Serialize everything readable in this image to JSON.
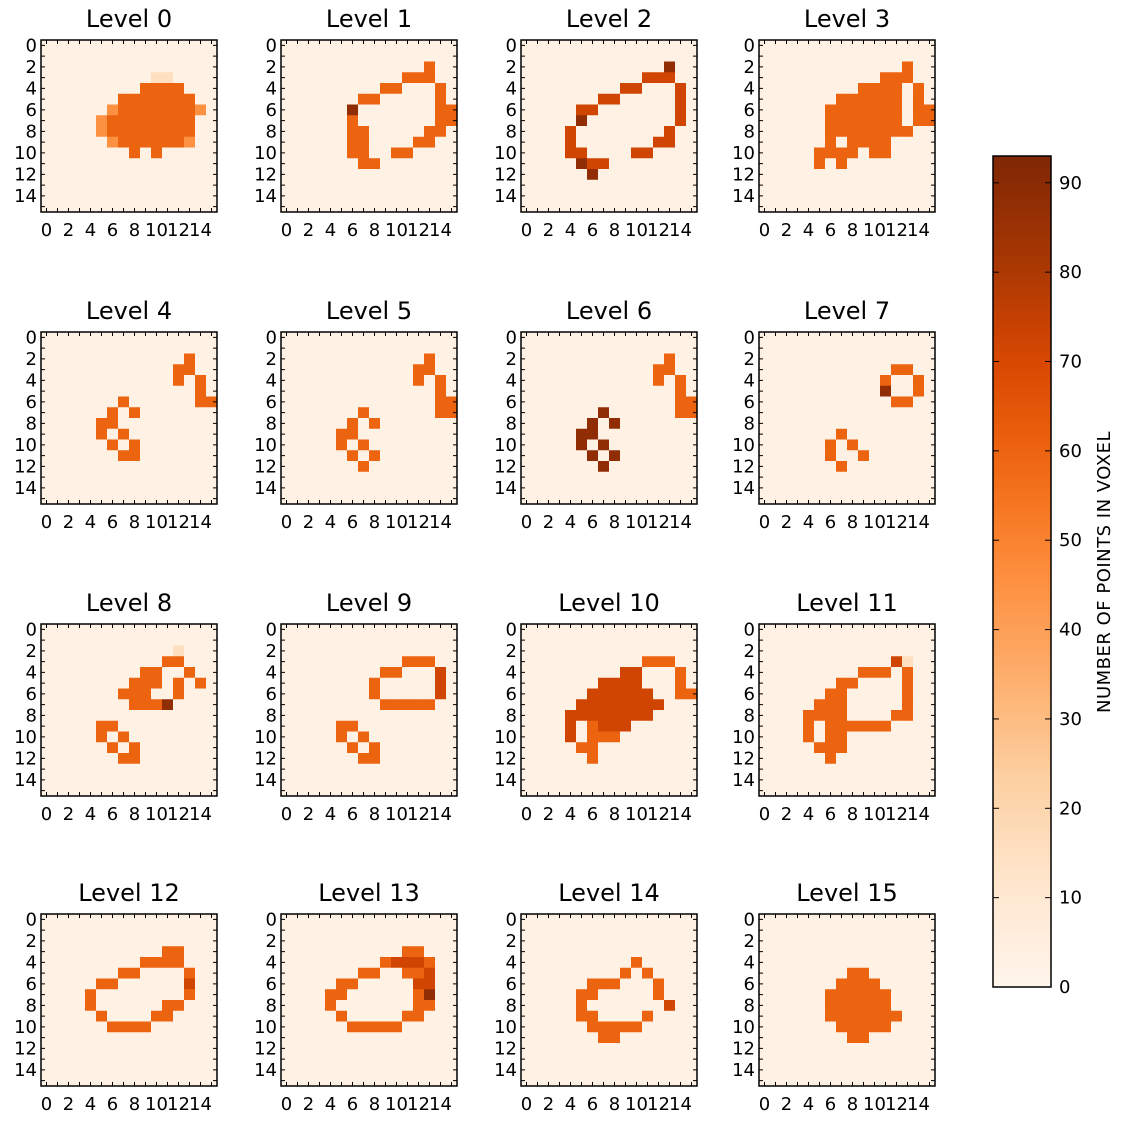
{
  "chart_data": {
    "type": "heatmap",
    "panel_titles": [
      "Level 0",
      "Level 1",
      "Level 2",
      "Level 3",
      "Level 4",
      "Level 5",
      "Level 6",
      "Level 7",
      "Level 8",
      "Level 9",
      "Level 10",
      "Level 11",
      "Level 12",
      "Level 13",
      "Level 14",
      "Level 15"
    ],
    "grid_size": 16,
    "x_tick_labels": [
      "0",
      "2",
      "4",
      "6",
      "8",
      "10",
      "12",
      "14"
    ],
    "y_tick_labels": [
      "0",
      "2",
      "4",
      "6",
      "8",
      "10",
      "12",
      "14"
    ],
    "colormap": "Oranges",
    "vmin": 0,
    "vmax": 93,
    "colorbar": {
      "label": "NUMBER OF POINTS IN VOXEL",
      "ticks": [
        "0",
        "10",
        "20",
        "30",
        "40",
        "50",
        "60",
        "70",
        "80",
        "90"
      ],
      "tick_values": [
        0,
        10,
        20,
        30,
        40,
        50,
        60,
        70,
        80,
        90
      ]
    },
    "panels": [
      {
        "rows": [
          "0000000000000000",
          "0000000000000000",
          "0000000000000000",
          "0000000000110000",
          "0000000006666000",
          "0000000666666600",
          "0000005666666650",
          "0000056666666600",
          "0000056666666600",
          "0000005666666500",
          "0000000060600000",
          "0000000000000000",
          "0000000000000000",
          "0000000000000000",
          "0000000000000000",
          "0000000000000000"
        ]
      },
      {
        "rows": [
          "0000000000000000",
          "0000000000000000",
          "0000000000000600",
          "0000000000066600",
          "0000000006600060",
          "0000000660000060",
          "0000008000000066",
          "0000006000000066",
          "0000006600000660",
          "0000006600006600",
          "0000006600660000",
          "0000000660000000",
          "0000000000000000",
          "0000000000000000",
          "0000000000000000",
          "0000000000000000"
        ]
      },
      {
        "rows": [
          "0000000000000000",
          "0000000000000000",
          "0000000000000800",
          "0000000000077700",
          "0000000007700070",
          "0000000770000070",
          "0000077000000070",
          "0000080000000070",
          "0000700000000700",
          "0000700000007700",
          "0000770000770000",
          "0000087700000000",
          "0000008000000000",
          "0000000000000000",
          "0000000000000000",
          "0000000000000000"
        ]
      },
      {
        "rows": [
          "0000000000000000",
          "0000000000000000",
          "0000000000000600",
          "0000000000066600",
          "0000000006666060",
          "0000000666666060",
          "0000006666666066",
          "0000006666666066",
          "0000006666666600",
          "0000006066660000",
          "0000066660660000",
          "0000060600000000",
          "0000000000000000",
          "0000000000000000",
          "0000000000000000",
          "0000000000000000"
        ]
      },
      {
        "rows": [
          "0000000000000000",
          "0000000000000000",
          "0000000000000600",
          "0000000000006600",
          "0000000000006060",
          "0000000000000060",
          "0000000600000066",
          "0000006060000000",
          "0000066000000000",
          "0000060600000000",
          "0000006060000000",
          "0000000660000000",
          "0000000000000000",
          "0000000000000000",
          "0000000000000000",
          "0000000000000000"
        ]
      },
      {
        "rows": [
          "0000000000000000",
          "0000000000000000",
          "0000000000000600",
          "0000000000006600",
          "0000000000006060",
          "0000000000000060",
          "0000000000000066",
          "0000000600000066",
          "0000006060000000",
          "0000066000000000",
          "0000060600000000",
          "0000006060000000",
          "0000000600000000",
          "0000000000000000",
          "0000000000000000",
          "0000000000000000"
        ]
      },
      {
        "rows": [
          "0000000000000000",
          "0000000000000000",
          "0000000000000600",
          "0000000000006600",
          "0000000000006060",
          "0000000000000060",
          "0000000000000066",
          "0000000800000066",
          "0000008080000000",
          "0000088000000000",
          "0000080800000000",
          "0000008080000000",
          "0000000800000000",
          "0000000000000000",
          "0000000000000000",
          "0000000000000000"
        ]
      },
      {
        "rows": [
          "0000000000000000",
          "0000000000000000",
          "0000000000000000",
          "0000000000006600",
          "0000000000060060",
          "0000000000080060",
          "0000000000006600",
          "0000000000000000",
          "0000000000000000",
          "0000000600000000",
          "0000006060000000",
          "0000006006000000",
          "0000000600000000",
          "0000000000000000",
          "0000000000000000",
          "0000000000000000"
        ]
      },
      {
        "rows": [
          "0000000000000000",
          "0000000000000000",
          "0000000000001000",
          "0000000000066000",
          "0000000006600600",
          "0000000066606060",
          "0000000666006000",
          "0000000066680000",
          "0000000000000000",
          "0000066000000000",
          "0000060600000000",
          "0000006060000000",
          "0000000660000000",
          "0000000000000000",
          "0000000000000000",
          "0000000000000000"
        ]
      },
      {
        "rows": [
          "0000000000000000",
          "0000000000000000",
          "0000000000000000",
          "0000000000066600",
          "0000000006600070",
          "0000000060000070",
          "0000000060000070",
          "0000000006666600",
          "0000000000000000",
          "0000066000000000",
          "0000060600000000",
          "0000006060000000",
          "0000000660000000",
          "0000000000000000",
          "0000000000000000",
          "0000000000000000"
        ]
      },
      {
        "rows": [
          "0000000000000000",
          "0000000000000000",
          "0000000000000000",
          "0000000000066600",
          "0000000007700060",
          "0000000777700060",
          "0000007777770066",
          "0000077777777000",
          "0000777777770000",
          "0000706777000000",
          "0000706660000000",
          "0000066000000000",
          "0000006000000000",
          "0000000000000000",
          "0000000000000000",
          "0000000000000000"
        ]
      },
      {
        "rows": [
          "0000000000000000",
          "0000000000000000",
          "0000000000000000",
          "0000000000007100",
          "0000000006660600",
          "0000000660000600",
          "0000006600000600",
          "0000066600000600",
          "0000666600006600",
          "0000606666660000",
          "0000606600000000",
          "0000066600000000",
          "0000006000000000",
          "0000000000000000",
          "0000000000000000",
          "0000000000000000"
        ]
      },
      {
        "rows": [
          "0000000000000000",
          "0000000000000000",
          "0000000000000000",
          "0000000000066000",
          "0000000006666000",
          "0000000660000600",
          "0000066000000700",
          "0000600000000600",
          "0000600000066000",
          "0000060000660000",
          "0000006666000000",
          "0000000000000000",
          "0000000000000000",
          "0000000000000000",
          "0000000000000000",
          "0000000000000000"
        ]
      },
      {
        "rows": [
          "0000000000000000",
          "0000000000000000",
          "0000000000000000",
          "0000000000066000",
          "0000000006777600",
          "0000000660066700",
          "0000066000007700",
          "0000660000006800",
          "0000600000006600",
          "0000060000066000",
          "0000006666600000",
          "0000000000000000",
          "0000000000000000",
          "0000000000000000",
          "0000000000000000",
          "0000000000000000"
        ]
      },
      {
        "rows": [
          "0000000000000000",
          "0000000000000000",
          "0000000000000000",
          "0000000000000000",
          "0000000000600000",
          "0000000006060000",
          "0000006660006000",
          "0000066000006000",
          "0000060000000700",
          "0000066000060000",
          "0000006666600000",
          "0000000660000000",
          "0000000000000000",
          "0000000000000000",
          "0000000000000000",
          "0000000000000000"
        ]
      },
      {
        "rows": [
          "0000000000000000",
          "0000000000000000",
          "0000000000000000",
          "0000000000000000",
          "0000000000000000",
          "0000000066000000",
          "0000000666600000",
          "0000006666660000",
          "0000006666660000",
          "0000006666666000",
          "0000000666660000",
          "0000000066000000",
          "0000000000000000",
          "0000000000000000",
          "0000000000000000",
          "0000000000000000"
        ]
      }
    ],
    "cell_scale": {
      "0": 3,
      "1": 15,
      "5": 45,
      "6": 60,
      "7": 72,
      "8": 88
    }
  }
}
